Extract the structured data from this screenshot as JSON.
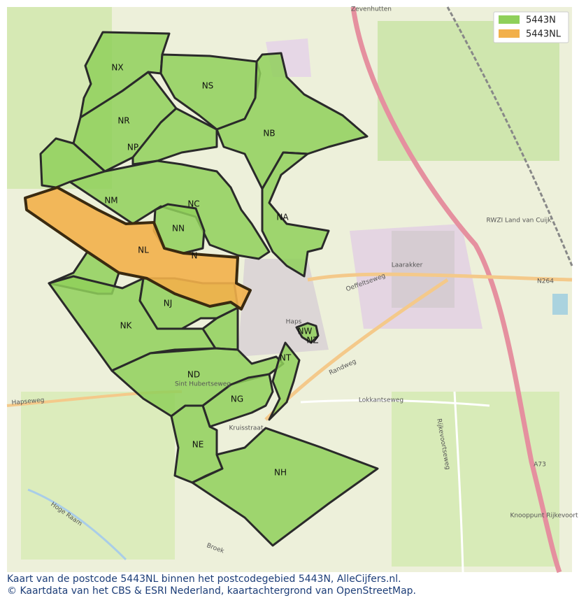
{
  "legend": [
    {
      "label": "5443N",
      "color": "#8fd05a"
    },
    {
      "label": "5443NL",
      "color": "#f2b04a"
    }
  ],
  "regions": [
    {
      "label": "NX"
    },
    {
      "label": "NS"
    },
    {
      "label": "NR"
    },
    {
      "label": "NP"
    },
    {
      "label": "NB"
    },
    {
      "label": "NM"
    },
    {
      "label": "NC"
    },
    {
      "label": "NN"
    },
    {
      "label": "NA"
    },
    {
      "label": "NL"
    },
    {
      "label": "N"
    },
    {
      "label": "NJ"
    },
    {
      "label": "NK"
    },
    {
      "label": "NW"
    },
    {
      "label": "NZ"
    },
    {
      "label": "NT"
    },
    {
      "label": "ND"
    },
    {
      "label": "NG"
    },
    {
      "label": "NE"
    },
    {
      "label": "NH"
    }
  ],
  "place_labels": [
    "Zevenhutten",
    "Oeffeltseweg",
    "Laarakker",
    "Haps",
    "N264",
    "RWZI Land van Cuijk",
    "Randweg",
    "Lokkantseweg",
    "Rijkevoortseweg",
    "Hapseweg",
    "Sint Hubertseweg",
    "Kruisstraat",
    "Hoge Raam",
    "Broek",
    "A73",
    "Knooppunt Rijkevoort"
  ],
  "caption": [
    "Kaart van de postcode 5443NL binnen het postcodegebied 5443N, AlleCijfers.nl.",
    "© Kaartdata van het CBS & ESRI Nederland, kaartachtergrond van OpenStreetMap."
  ]
}
